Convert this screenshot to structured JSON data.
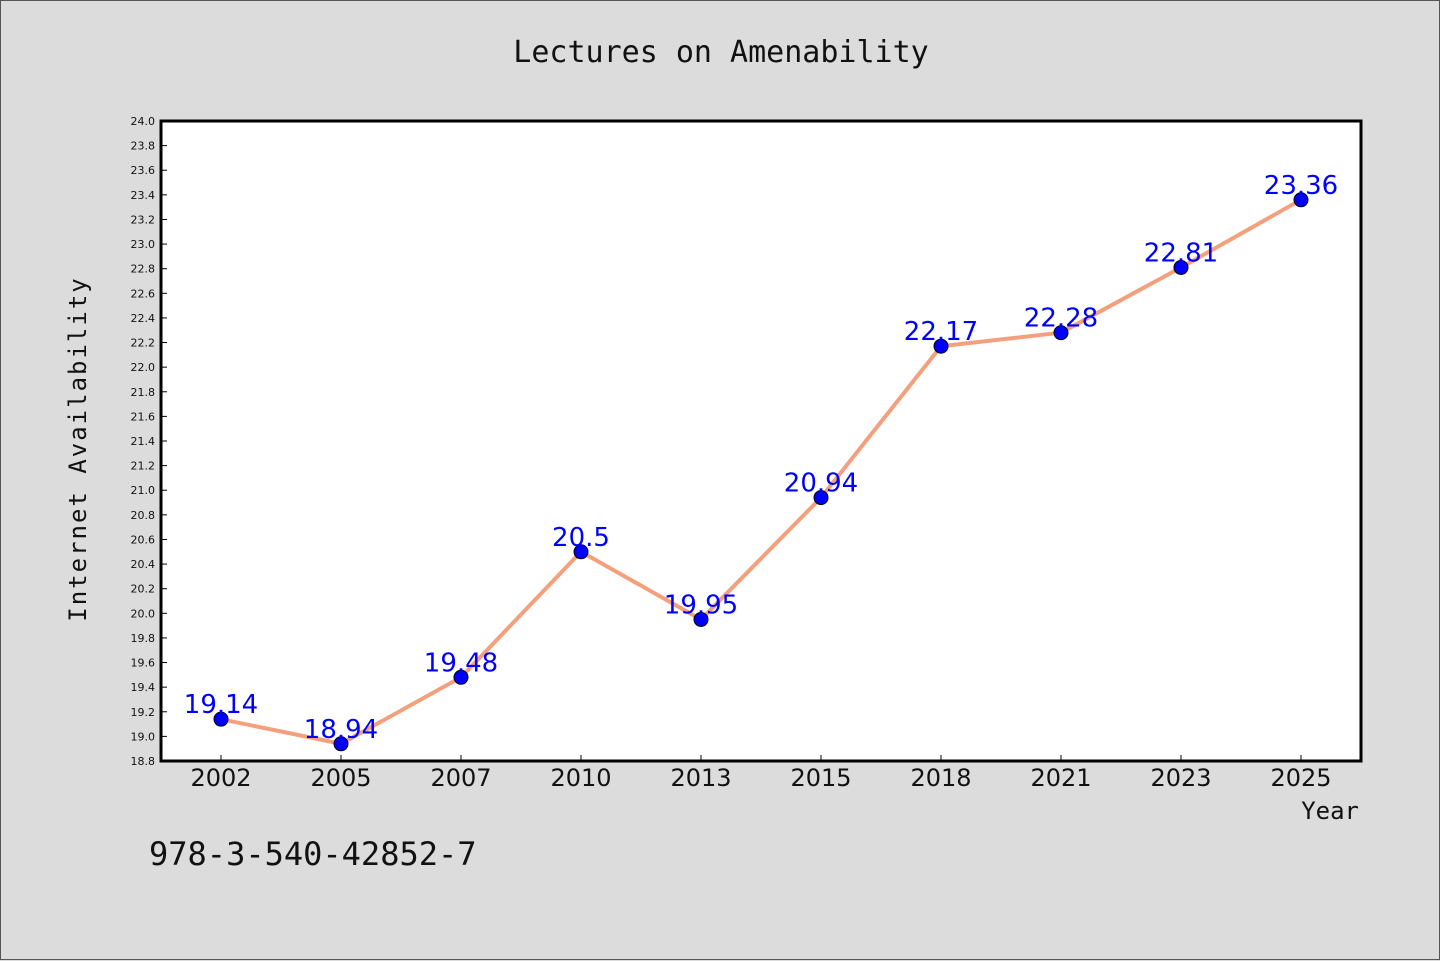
{
  "chart_data": {
    "type": "line",
    "title": "Lectures on Amenability",
    "xlabel": "Year",
    "ylabel": "Internet Availability",
    "categories": [
      "2002",
      "2005",
      "2007",
      "2010",
      "2013",
      "2015",
      "2018",
      "2021",
      "2023",
      "2025"
    ],
    "series": [
      {
        "values": [
          19.14,
          18.94,
          19.48,
          20.5,
          19.95,
          20.94,
          22.17,
          22.28,
          22.81,
          23.36
        ]
      }
    ],
    "data_labels": [
      "19.14",
      "18.94",
      "19.48",
      "20.5",
      "19.95",
      "20.94",
      "22.17",
      "22.28",
      "22.81",
      "23.36"
    ],
    "ylim": [
      18.8,
      24.0
    ],
    "ytick_step": 0.2,
    "grid": false,
    "legend": "none",
    "colors": {
      "line": "#f4a07c",
      "marker": "#0000ff",
      "data_label": "#0000ff",
      "background": "#dcdcdc",
      "plot_bg": "#ffffff"
    }
  },
  "footer_text": "978-3-540-42852-7"
}
